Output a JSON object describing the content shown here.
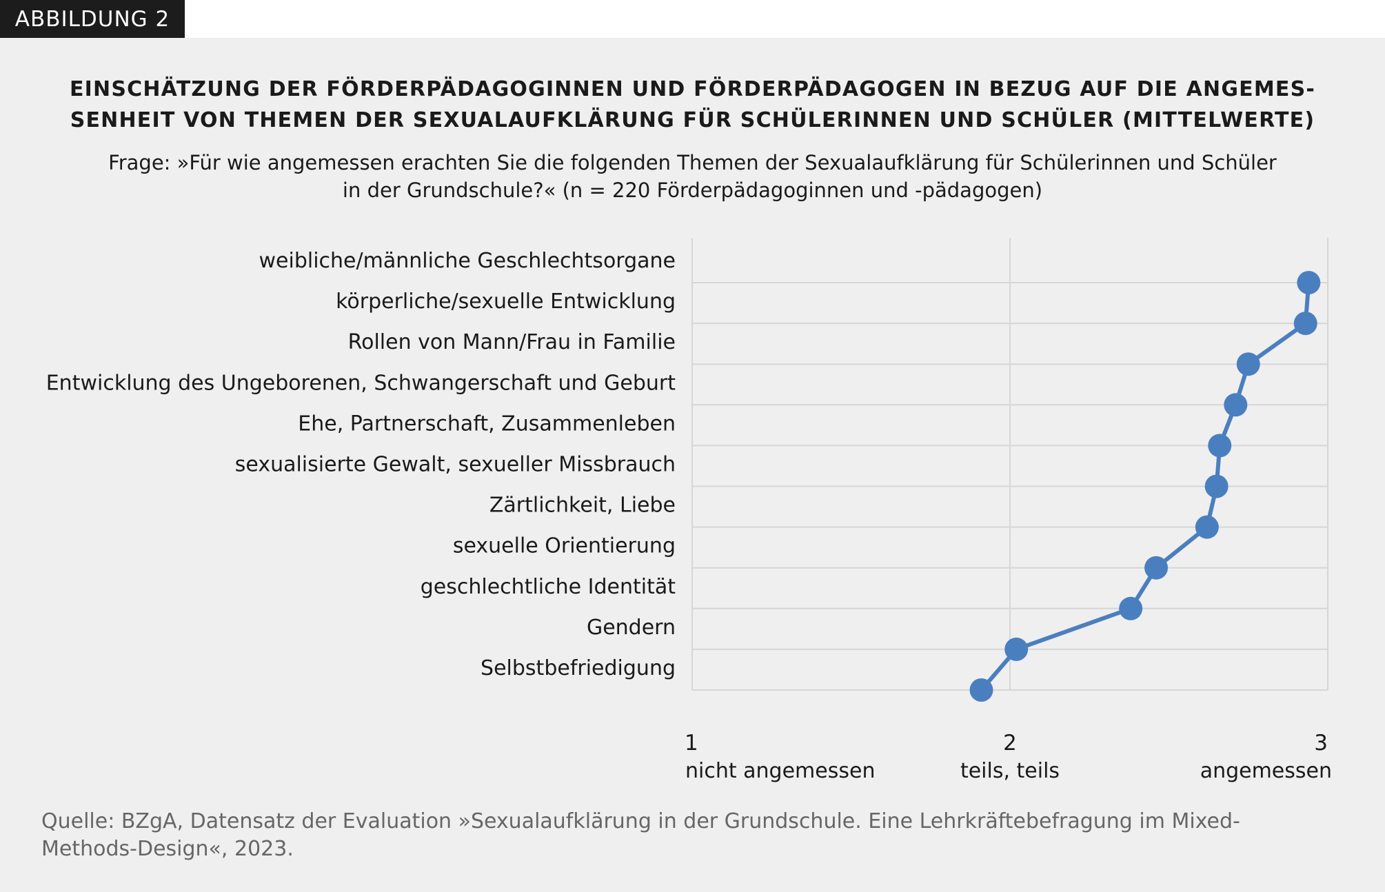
{
  "badge": "ABBILDUNG 2",
  "title_line1": "EINSCHÄTZUNG DER FÖRDERPÄDAGOGINNEN UND FÖRDERPÄDAGOGEN IN BEZUG AUF DIE ANGEMES-",
  "title_line2": "SENHEIT VON THEMEN DER SEXUALAUFKLÄRUNG FÜR SCHÜLERINNEN UND SCHÜLER (MITTELWERTE)",
  "subtitle_line1": "Frage: »Für wie angemessen erachten Sie die folgenden Themen der Sexualaufklärung für Schülerinnen und Schüler",
  "subtitle_line2": "in der Grundschule?« (n = 220 Förderpädagoginnen und -pädagogen)",
  "source_line1": "Quelle: BZgA, Datensatz der Evaluation »Sexualaufklärung in der Grundschule. Eine Lehrkräftebefragung im Mixed-",
  "source_line2": "Methods-Design«, 2023.",
  "chart_data": {
    "type": "line",
    "orientation": "horizontal",
    "categories": [
      "weibliche/männliche Geschlechtsorgane",
      "körperliche/sexuelle Entwicklung",
      "Rollen von Mann/Frau in Familie",
      "Entwicklung des Ungeborenen, Schwangerschaft und Geburt",
      "Ehe, Partnerschaft, Zusammenleben",
      "sexualisierte Gewalt, sexueller Missbrauch",
      "Zärtlichkeit, Liebe",
      "sexuelle Orientierung",
      "geschlechtliche Identität",
      "Gendern",
      "Selbstbefriedigung"
    ],
    "values": [
      2.94,
      2.93,
      2.75,
      2.71,
      2.66,
      2.65,
      2.62,
      2.46,
      2.38,
      2.02,
      1.91
    ],
    "xlim": [
      1,
      3
    ],
    "xticks": [
      {
        "value": 1,
        "label": "1",
        "sublabel": "nicht angemessen"
      },
      {
        "value": 2,
        "label": "2",
        "sublabel": "teils, teils"
      },
      {
        "value": 3,
        "label": "3",
        "sublabel": "angemessen"
      }
    ],
    "grid": true,
    "color": "#4a7fbf"
  }
}
